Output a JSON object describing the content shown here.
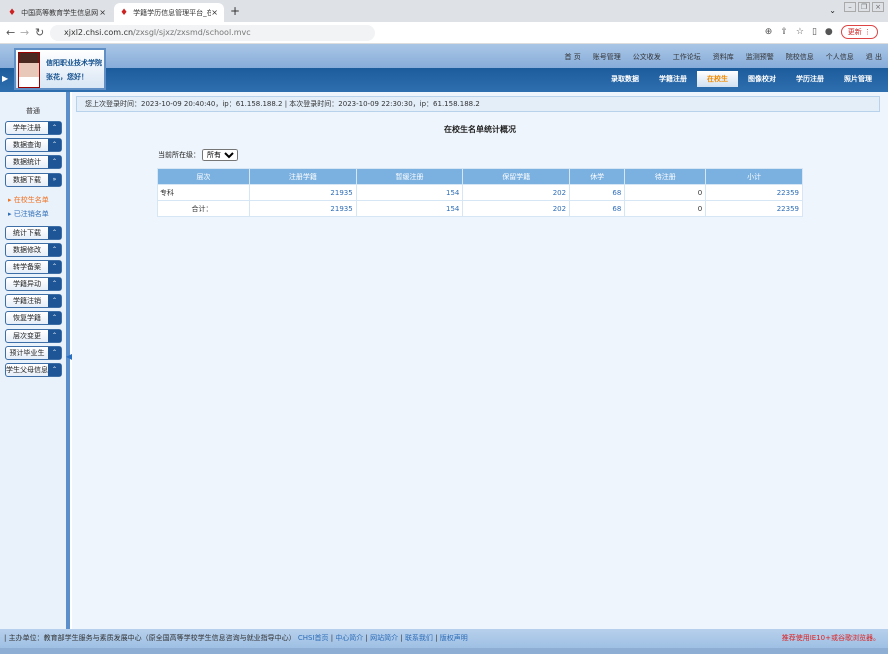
{
  "browser": {
    "tabs": [
      {
        "title": "中国高等教育学生信息网（学信网）",
        "active": false
      },
      {
        "title": "学籍学历信息管理平台_在校生",
        "active": true
      }
    ],
    "url_host": "xjxl2.chsi.com.cn",
    "url_path": "/zxsgl/sjxz/zxsmd/school.mvc",
    "update_label": "更新"
  },
  "user": {
    "school": "信阳职业技术学院",
    "greeting": "张花，您好！"
  },
  "topnav": [
    "首 页",
    "账号管理",
    "公文收发",
    "工作论坛",
    "资料库",
    "监测预警",
    "院校信息",
    "个人信息",
    "退 出"
  ],
  "mainnav": [
    {
      "label": "录取数据",
      "active": false
    },
    {
      "label": "学籍注册",
      "active": false
    },
    {
      "label": "在校生",
      "active": true
    },
    {
      "label": "图像校对",
      "active": false
    },
    {
      "label": "学历注册",
      "active": false
    },
    {
      "label": "照片管理",
      "active": false
    }
  ],
  "sidebar": {
    "category": "普通",
    "buttons_top": [
      "学年注册",
      "数据查询",
      "数据统计",
      "数据下载"
    ],
    "links": [
      {
        "label": "在校生名单",
        "active": true
      },
      {
        "label": "已注销名单",
        "active": false
      }
    ],
    "buttons_bottom": [
      "统计下载",
      "数据修改",
      "转学备案",
      "学籍异动",
      "学籍注销",
      "恢复学籍",
      "层次变更",
      "预计毕业生",
      "学生父母信息"
    ]
  },
  "login_info": "您上次登录时间：2023-10-09 20:40:40，ip：61.158.188.2 | 本次登录时间：2023-10-09 22:30:30，ip：61.158.188.2",
  "page_title": "在校生名单统计概况",
  "filter": {
    "label": "当前所在级：",
    "value": "所有"
  },
  "table": {
    "headers": [
      "层次",
      "注册学籍",
      "暂缓注册",
      "保留学籍",
      "休学",
      "待注册",
      "小计"
    ],
    "rows": [
      [
        "专科",
        "21935",
        "154",
        "202",
        "68",
        "0",
        "22359"
      ],
      [
        "合计：",
        "21935",
        "154",
        "202",
        "68",
        "0",
        "22359"
      ]
    ]
  },
  "footer": {
    "host": "| 主办单位：教育部学生服务与素质发展中心（原全国高等学校学生信息咨询与就业指导中心）",
    "links": [
      "CHSI首页",
      "中心简介",
      "网站简介",
      "联系我们",
      "版权声明"
    ],
    "warning": "推荐使用IE10+或谷歌浏览器。"
  }
}
